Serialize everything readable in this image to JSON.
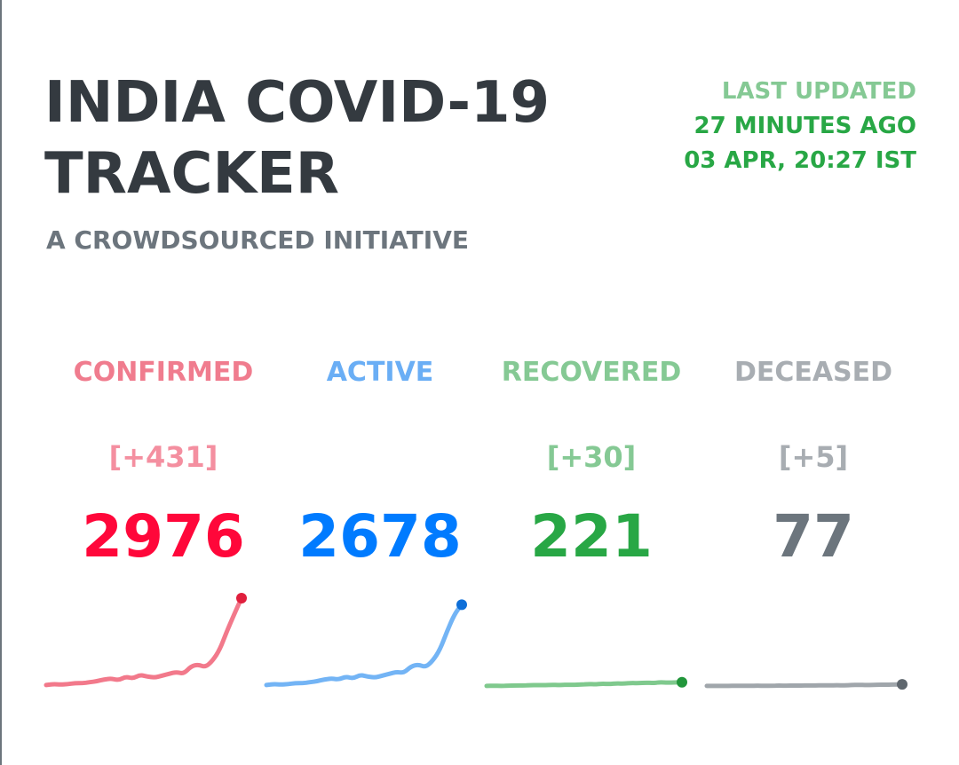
{
  "header": {
    "title_line1": "INDIA COVID-19",
    "title_line2": "TRACKER",
    "subtitle": "A CROWDSOURCED INITIATIVE"
  },
  "last_updated": {
    "label": "LAST UPDATED",
    "ago": "27 MINUTES AGO",
    "timestamp": "03 APR, 20:27 IST"
  },
  "stats": [
    {
      "key": "confirmed",
      "label": "CONFIRMED",
      "delta": "[+431]",
      "total": "2976",
      "label_color": "#f07c8e",
      "delta_color": "#f48fa0",
      "total_color": "#ff073a",
      "line_color": "#f2798b",
      "dot_color": "#e01f3d",
      "trend": [
        2,
        3,
        2.5,
        3,
        4,
        4,
        5,
        6,
        8,
        9,
        7,
        11,
        9,
        13,
        11,
        10,
        12,
        14,
        16,
        14,
        22,
        24,
        21,
        28,
        40,
        60,
        78,
        95
      ]
    },
    {
      "key": "active",
      "label": "ACTIVE",
      "delta": "",
      "total": "2678",
      "label_color": "#6aaef5",
      "delta_color": "#6aaef5",
      "total_color": "#007bff",
      "line_color": "#73b4f5",
      "dot_color": "#0f6fd8",
      "trend": [
        2,
        3,
        2.5,
        3,
        4,
        4,
        5,
        6,
        8,
        9,
        8,
        11,
        9,
        13,
        11,
        10,
        12,
        14,
        16,
        15,
        22,
        24,
        21,
        28,
        40,
        60,
        78,
        88
      ]
    },
    {
      "key": "recovered",
      "label": "RECOVERED",
      "delta": "[+30]",
      "total": "221",
      "label_color": "#85c994",
      "delta_color": "#85c994",
      "total_color": "#28a745",
      "line_color": "#7fc98d",
      "dot_color": "#22963b",
      "trend": [
        1,
        1.2,
        1,
        1.3,
        1.5,
        1.5,
        1.8,
        2,
        1.8,
        2.2,
        2,
        2.4,
        2.2,
        2.6,
        3,
        2.8,
        3.4,
        3,
        3.8,
        3.5,
        4.2,
        4,
        4.6,
        4.2,
        5,
        4.5,
        4.8,
        5
      ]
    },
    {
      "key": "deceased",
      "label": "DECEASED",
      "delta": "[+5]",
      "total": "77",
      "label_color": "#a8adb2",
      "delta_color": "#a8adb2",
      "total_color": "#6c757d",
      "line_color": "#a0a6ab",
      "dot_color": "#5f676e",
      "trend": [
        1,
        1,
        1.1,
        1,
        1.2,
        1.1,
        1.2,
        1.3,
        1.2,
        1.3,
        1.4,
        1.3,
        1.5,
        1.4,
        1.6,
        1.5,
        1.7,
        1.6,
        1.8,
        1.7,
        1.9,
        2.2,
        1.9,
        2.1,
        2.5,
        2.3,
        2.6,
        2.8
      ]
    }
  ]
}
